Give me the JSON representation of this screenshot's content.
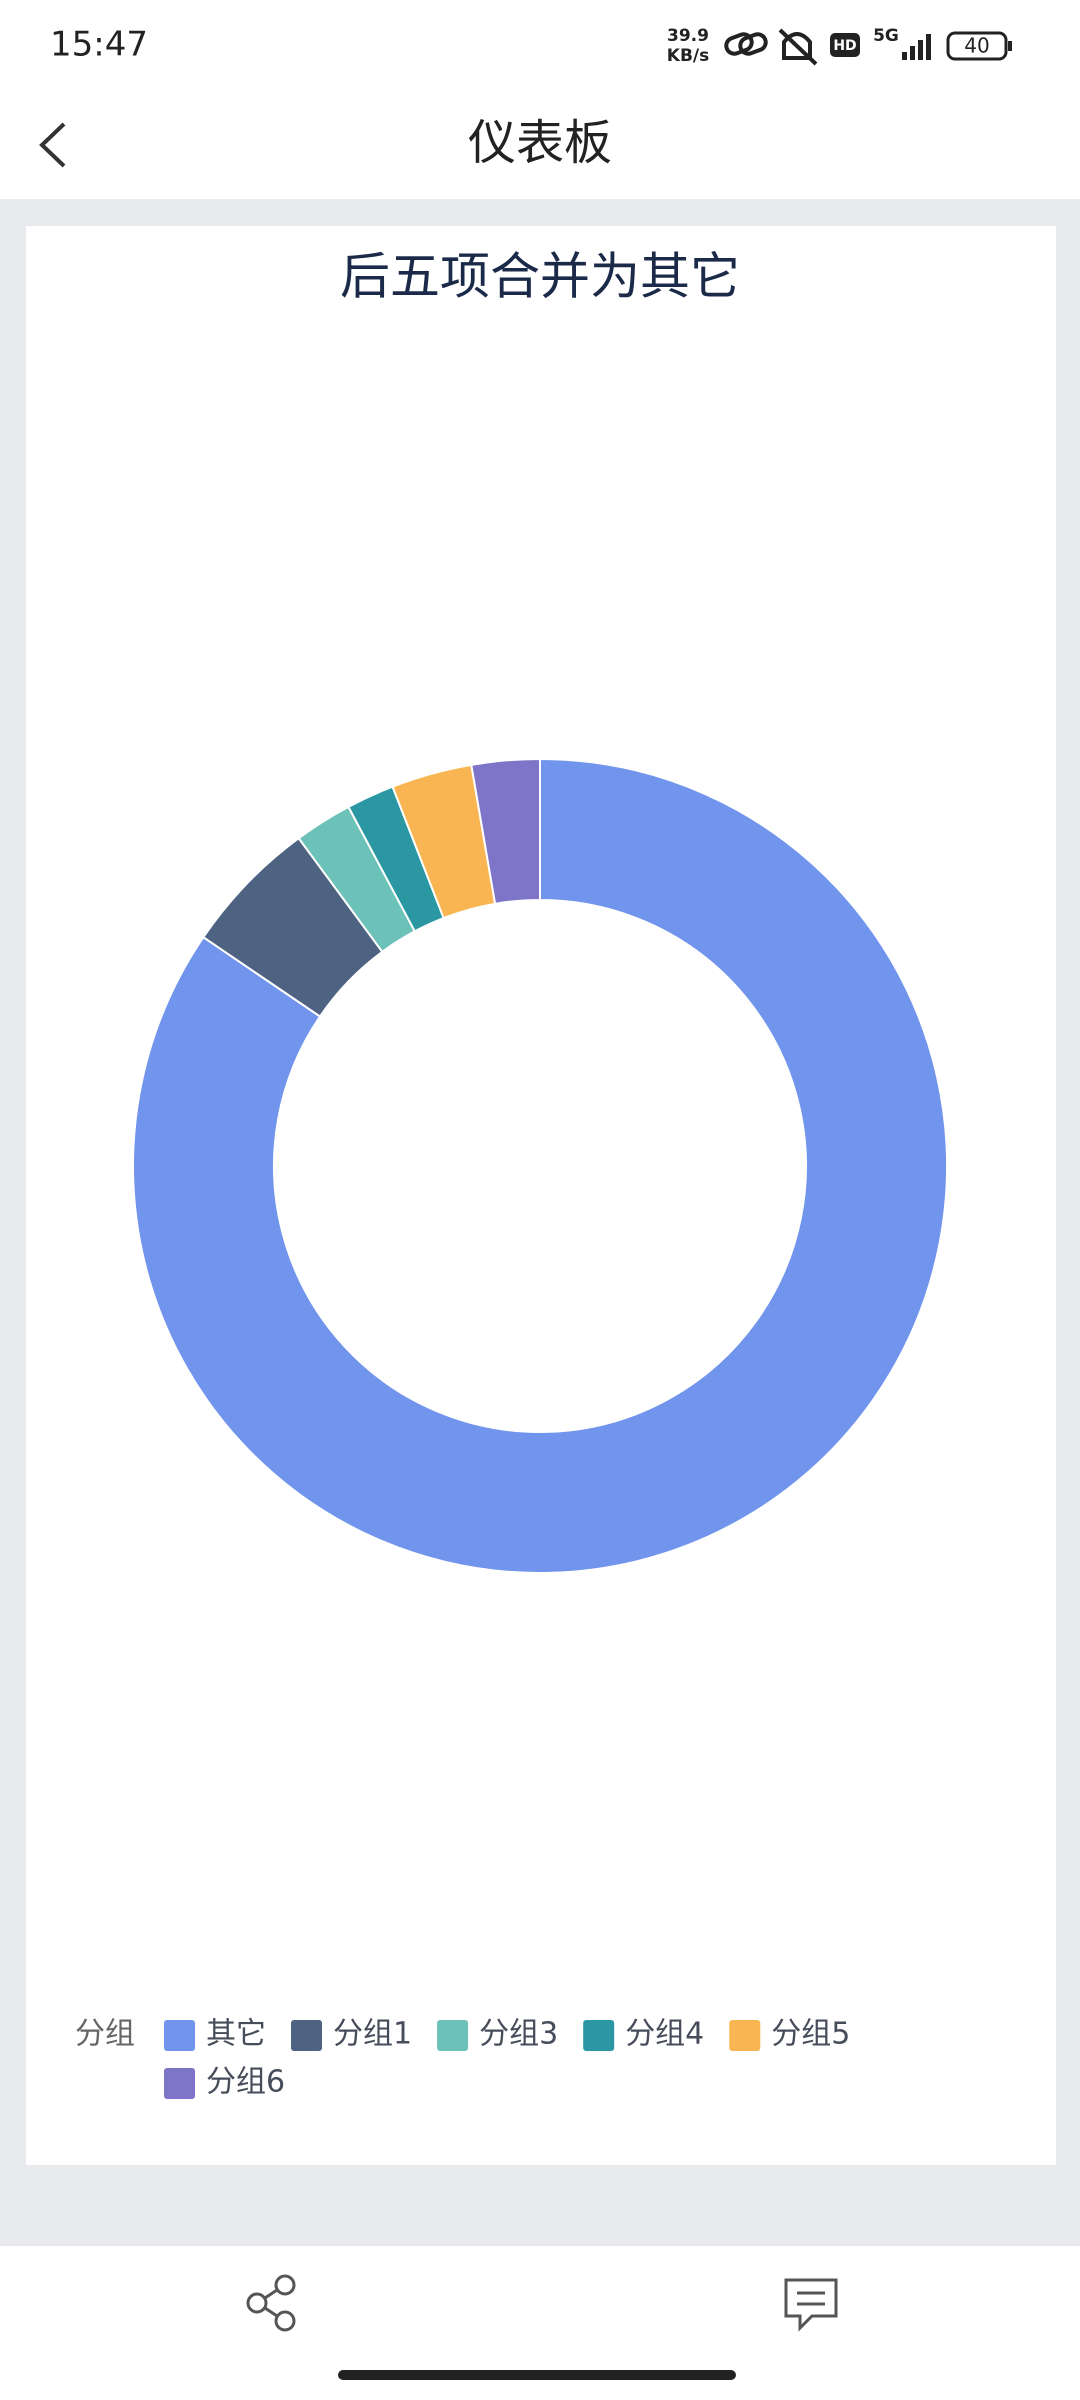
{
  "status_bar": {
    "time": "15:47",
    "speed": "39.9",
    "speed_unit": "KB/s",
    "hd": "HD",
    "network": "5G",
    "battery": "40"
  },
  "header": {
    "title": "仪表板"
  },
  "chart_data": {
    "type": "pie",
    "title": "后五项合并为其它",
    "categories": [
      "其它",
      "分组1",
      "分组3",
      "分组4",
      "分组5",
      "分组6"
    ],
    "values": [
      84.5,
      5.4,
      2.3,
      1.9,
      3.2,
      2.7
    ],
    "colors": [
      "#7194ec",
      "#4e6282",
      "#6cc1b8",
      "#2a97a3",
      "#f8b551",
      "#7e75c8"
    ],
    "donut": true,
    "legend_title": "分组",
    "legend_position": "bottom-left"
  }
}
